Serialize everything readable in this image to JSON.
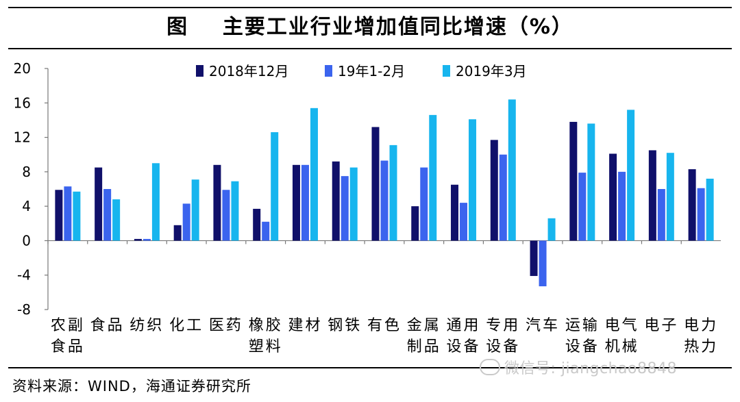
{
  "title": "图    主要工业行业增加值同比增速（%）",
  "source": "资料来源：WIND，海通证券研究所",
  "watermark": "微信号: jiangchao8848",
  "colors": {
    "s1": "#10106a",
    "s2": "#3b64ee",
    "s3": "#17b5ee"
  },
  "chart_data": {
    "type": "bar",
    "ylim": [
      -8,
      20
    ],
    "yticks": [
      20,
      16,
      12,
      8,
      4,
      0,
      -4,
      -8
    ],
    "legend_position": "top",
    "categories": [
      [
        "农副",
        "食品"
      ],
      [
        "食品"
      ],
      [
        "纺织"
      ],
      [
        "化工"
      ],
      [
        "医药"
      ],
      [
        "橡胶",
        "塑料"
      ],
      [
        "建材"
      ],
      [
        "钢铁"
      ],
      [
        "有色"
      ],
      [
        "金属",
        "制品"
      ],
      [
        "通用",
        "设备"
      ],
      [
        "专用",
        "设备"
      ],
      [
        "汽车"
      ],
      [
        "运输",
        "设备"
      ],
      [
        "电气",
        "机械"
      ],
      [
        "电子"
      ],
      [
        "电力",
        "热力"
      ]
    ],
    "series": [
      {
        "name": "2018年12月",
        "values": [
          5.9,
          8.5,
          0.2,
          1.8,
          8.8,
          3.7,
          8.8,
          9.2,
          13.2,
          4.0,
          6.5,
          11.7,
          -4.1,
          13.8,
          10.1,
          10.5,
          8.3
        ]
      },
      {
        "name": "19年1-2月",
        "values": [
          6.3,
          6.0,
          0.2,
          4.3,
          5.9,
          2.2,
          8.8,
          7.5,
          9.3,
          8.5,
          4.4,
          10.0,
          -5.3,
          7.9,
          8.0,
          6.0,
          6.1
        ]
      },
      {
        "name": "2019年3月",
        "values": [
          5.7,
          4.8,
          9.0,
          7.1,
          6.9,
          12.6,
          15.4,
          8.5,
          11.1,
          14.6,
          14.1,
          16.4,
          2.6,
          13.6,
          15.2,
          10.2,
          7.2
        ]
      }
    ]
  }
}
